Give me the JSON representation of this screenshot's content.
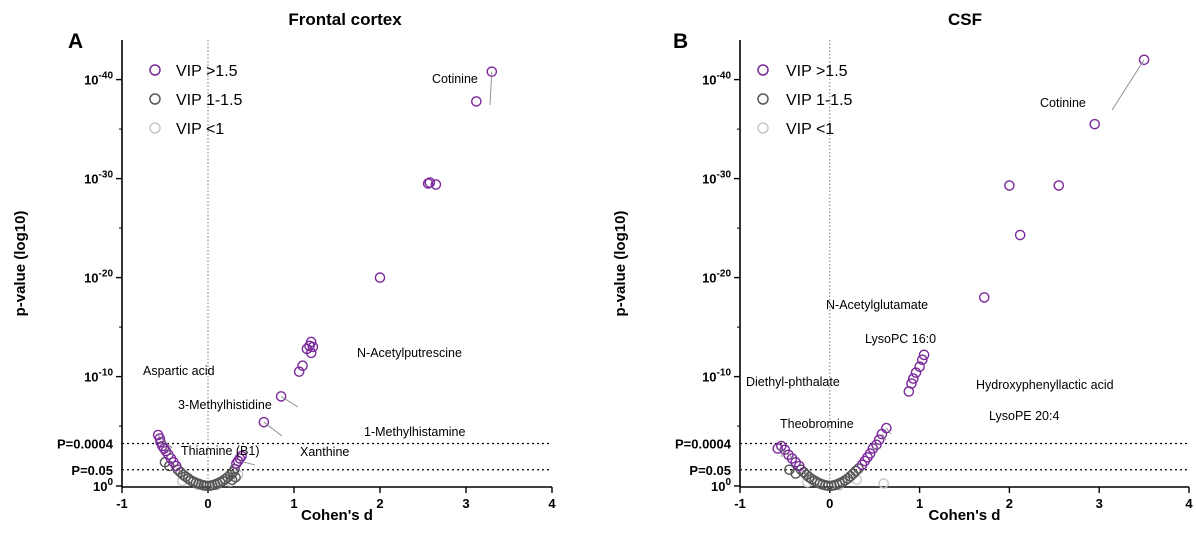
{
  "chart_data": [
    {
      "type": "scatter",
      "panel_letter": "A",
      "title": "Frontal cortex",
      "xlabel": "Cohen's d",
      "ylabel": "p-value (log10)",
      "xlim": [
        -1,
        4
      ],
      "ylim": [
        0,
        44
      ],
      "x_ticks": [
        -1,
        0,
        1,
        2,
        3,
        4
      ],
      "y_ticks": [
        0,
        10,
        20,
        30,
        40
      ],
      "thresholds": [
        {
          "label": "P=0.0004",
          "value": 3.4
        },
        {
          "label": "P=0.05",
          "value": 1.3
        }
      ],
      "legend": [
        {
          "label": "VIP >1.5",
          "color": "#7b2a9c"
        },
        {
          "label": "VIP 1-1.5",
          "color": "#555555"
        },
        {
          "label": "VIP <1",
          "color": "#c8c8c8"
        }
      ],
      "series": [
        {
          "name": "VIP >1.5",
          "color": "#7b2a9c",
          "points": [
            [
              3.3,
              40.8
            ],
            [
              3.12,
              37.8
            ],
            [
              2.58,
              29.6
            ],
            [
              2.56,
              29.5
            ],
            [
              2.65,
              29.4
            ],
            [
              2.0,
              20.0
            ],
            [
              1.2,
              13.5
            ],
            [
              1.18,
              13.1
            ],
            [
              1.22,
              13.0
            ],
            [
              1.15,
              12.8
            ],
            [
              1.2,
              12.4
            ],
            [
              1.1,
              11.1
            ],
            [
              1.06,
              10.5
            ],
            [
              0.85,
              8.0
            ],
            [
              0.65,
              5.4
            ],
            [
              -0.58,
              4.1
            ],
            [
              -0.56,
              3.8
            ],
            [
              -0.55,
              3.5
            ],
            [
              -0.53,
              3.2
            ],
            [
              -0.51,
              3.0
            ],
            [
              -0.49,
              2.8
            ],
            [
              -0.46,
              2.5
            ],
            [
              -0.43,
              2.2
            ],
            [
              -0.4,
              1.9
            ],
            [
              -0.37,
              1.6
            ],
            [
              0.33,
              1.8
            ],
            [
              0.35,
              2.0
            ],
            [
              0.37,
              2.2
            ],
            [
              0.39,
              2.4
            ]
          ]
        },
        {
          "name": "VIP 1-1.5",
          "color": "#555555",
          "points": [
            [
              -0.35,
              1.3
            ],
            [
              -0.32,
              1.1
            ],
            [
              -0.29,
              0.9
            ],
            [
              -0.26,
              0.75
            ],
            [
              -0.23,
              0.6
            ],
            [
              -0.2,
              0.45
            ],
            [
              -0.17,
              0.35
            ],
            [
              -0.14,
              0.25
            ],
            [
              -0.11,
              0.18
            ],
            [
              -0.08,
              0.1
            ],
            [
              -0.05,
              0.05
            ],
            [
              -0.02,
              0.02
            ],
            [
              0.02,
              0.02
            ],
            [
              0.05,
              0.06
            ],
            [
              0.08,
              0.12
            ],
            [
              0.11,
              0.2
            ],
            [
              0.14,
              0.3
            ],
            [
              0.17,
              0.4
            ],
            [
              0.2,
              0.55
            ],
            [
              0.23,
              0.7
            ],
            [
              0.26,
              0.9
            ],
            [
              0.29,
              1.1
            ],
            [
              0.31,
              1.35
            ],
            [
              -0.5,
              1.9
            ],
            [
              -0.45,
              1.6
            ],
            [
              0.32,
              0.7
            ],
            [
              0.28,
              0.5
            ]
          ]
        },
        {
          "name": "VIP <1",
          "color": "#c8c8c8",
          "points": [
            [
              -0.3,
              0.4
            ],
            [
              -0.12,
              0.1
            ],
            [
              0.1,
              0.08
            ],
            [
              0.26,
              0.35
            ],
            [
              0.35,
              0.9
            ]
          ]
        }
      ],
      "annotations": [
        {
          "text": "Cotinine",
          "point": [
            3.3,
            40.8
          ]
        },
        {
          "text": "N-Acetylputrescine",
          "point": [
            0.85,
            8.0
          ]
        },
        {
          "text": "1-Methylhistamine",
          "point": [
            0.65,
            5.4
          ]
        },
        {
          "text": "Aspartic acid",
          "point": [
            -0.58,
            4.1
          ]
        },
        {
          "text": "3-Methylhistidine",
          "point": [
            -0.55,
            3.5
          ]
        },
        {
          "text": "Thiamine (B1)",
          "point": [
            -0.45,
            2.0
          ]
        },
        {
          "text": "Xanthine",
          "point": [
            0.36,
            2.0
          ]
        }
      ]
    },
    {
      "type": "scatter",
      "panel_letter": "B",
      "title": "CSF",
      "xlabel": "Cohen's d",
      "ylabel": "p-value (log10)",
      "xlim": [
        -1,
        4
      ],
      "ylim": [
        0,
        44
      ],
      "x_ticks": [
        -1,
        0,
        1,
        2,
        3,
        4
      ],
      "y_ticks": [
        0,
        10,
        20,
        30,
        40
      ],
      "thresholds": [
        {
          "label": "P=0.0004",
          "value": 3.4
        },
        {
          "label": "P=0.05",
          "value": 1.3
        }
      ],
      "legend": [
        {
          "label": "VIP >1.5",
          "color": "#7b2a9c"
        },
        {
          "label": "VIP 1-1.5",
          "color": "#555555"
        },
        {
          "label": "VIP <1",
          "color": "#c8c8c8"
        }
      ],
      "series": [
        {
          "name": "VIP >1.5",
          "color": "#7b2a9c",
          "points": [
            [
              3.5,
              42.0
            ],
            [
              2.95,
              35.5
            ],
            [
              2.0,
              29.3
            ],
            [
              2.55,
              29.3
            ],
            [
              2.12,
              24.3
            ],
            [
              1.72,
              18.0
            ],
            [
              1.05,
              12.2
            ],
            [
              1.03,
              11.7
            ],
            [
              1.0,
              11.0
            ],
            [
              0.96,
              10.4
            ],
            [
              0.93,
              9.8
            ],
            [
              0.91,
              9.3
            ],
            [
              0.88,
              8.5
            ],
            [
              0.63,
              4.8
            ],
            [
              0.58,
              4.2
            ],
            [
              0.55,
              3.7
            ],
            [
              0.52,
              3.3
            ],
            [
              0.48,
              3.0
            ],
            [
              0.45,
              2.6
            ],
            [
              0.42,
              2.3
            ],
            [
              0.39,
              2.0
            ],
            [
              0.36,
              1.7
            ],
            [
              -0.58,
              3.0
            ],
            [
              -0.54,
              3.2
            ],
            [
              -0.5,
              2.9
            ],
            [
              -0.46,
              2.5
            ],
            [
              -0.42,
              2.2
            ],
            [
              -0.38,
              1.9
            ],
            [
              -0.34,
              1.6
            ]
          ]
        },
        {
          "name": "VIP 1-1.5",
          "color": "#555555",
          "points": [
            [
              -0.32,
              1.3
            ],
            [
              -0.29,
              1.1
            ],
            [
              -0.26,
              0.9
            ],
            [
              -0.23,
              0.7
            ],
            [
              -0.2,
              0.55
            ],
            [
              -0.17,
              0.42
            ],
            [
              -0.14,
              0.3
            ],
            [
              -0.11,
              0.2
            ],
            [
              -0.08,
              0.12
            ],
            [
              -0.05,
              0.06
            ],
            [
              -0.02,
              0.02
            ],
            [
              0.02,
              0.02
            ],
            [
              0.05,
              0.06
            ],
            [
              0.08,
              0.13
            ],
            [
              0.11,
              0.22
            ],
            [
              0.14,
              0.32
            ],
            [
              0.17,
              0.45
            ],
            [
              0.2,
              0.6
            ],
            [
              0.23,
              0.78
            ],
            [
              0.26,
              0.98
            ],
            [
              0.29,
              1.2
            ],
            [
              0.32,
              1.4
            ],
            [
              -0.45,
              1.3
            ],
            [
              -0.38,
              1.0
            ]
          ]
        },
        {
          "name": "VIP <1",
          "color": "#c8c8c8",
          "points": [
            [
              -0.25,
              0.3
            ],
            [
              0.6,
              0.2
            ],
            [
              0.1,
              0.05
            ],
            [
              0.3,
              0.5
            ]
          ]
        }
      ],
      "annotations": [
        {
          "text": "Cotinine",
          "point": [
            3.5,
            42.0
          ]
        },
        {
          "text": "N-Acetylglutamate",
          "point": [
            0.52,
            3.3
          ]
        },
        {
          "text": "LysoPC 16:0",
          "point": [
            0.48,
            3.0
          ]
        },
        {
          "text": "Diethyl-phthalate",
          "point": [
            -0.5,
            2.9
          ]
        },
        {
          "text": "Theobromine",
          "point": [
            -0.58,
            3.0
          ]
        },
        {
          "text": "Hydroxyphenyllactic acid",
          "point": [
            0.58,
            4.2
          ]
        },
        {
          "text": "LysoPE 20:4",
          "point": [
            0.63,
            4.8
          ]
        }
      ]
    }
  ]
}
